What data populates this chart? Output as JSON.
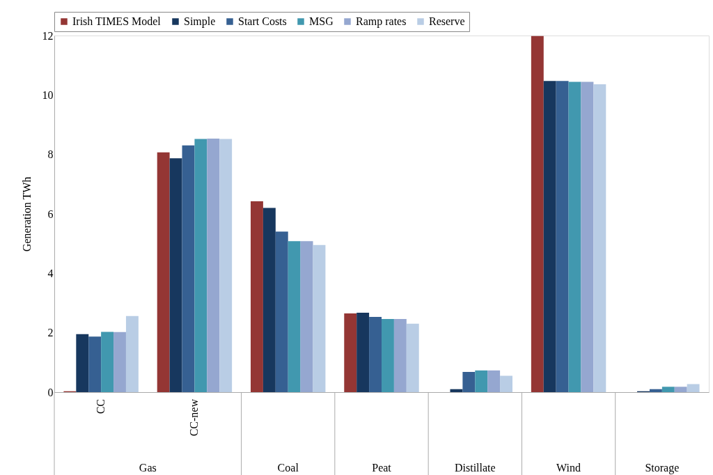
{
  "chart_data": {
    "type": "bar",
    "ylabel": "Generation TWh",
    "categories": [
      "CC",
      "CC-new",
      "Coal",
      "Peat",
      "Distillate",
      "Wind",
      "Storage"
    ],
    "annotations": [
      "Gas"
    ],
    "series": [
      {
        "name": "Irish TIMES Model",
        "color": "#943634",
        "values": [
          0.03,
          8.07,
          6.42,
          2.65,
          0,
          11.98,
          0
        ]
      },
      {
        "name": "Simple",
        "color": "#17375e",
        "values": [
          1.95,
          7.87,
          6.2,
          2.67,
          0.1,
          10.47,
          0.03
        ]
      },
      {
        "name": "Start Costs",
        "color": "#366092",
        "values": [
          1.87,
          8.3,
          5.4,
          2.53,
          0.68,
          10.47,
          0.1
        ]
      },
      {
        "name": "MSG",
        "color": "#4198af",
        "values": [
          2.03,
          8.52,
          5.08,
          2.46,
          0.73,
          10.44,
          0.18
        ]
      },
      {
        "name": "Ramp rates",
        "color": "#95a7d0",
        "values": [
          2.02,
          8.53,
          5.08,
          2.46,
          0.73,
          10.44,
          0.18
        ]
      },
      {
        "name": "Reserve",
        "color": "#b9cde5",
        "values": [
          2.56,
          8.52,
          4.95,
          2.3,
          0.55,
          10.36,
          0.27
        ]
      }
    ],
    "ylim": [
      0,
      12
    ],
    "yticks": [
      0,
      2,
      4,
      6,
      8,
      10,
      12
    ],
    "grid": false,
    "legend": "top"
  }
}
